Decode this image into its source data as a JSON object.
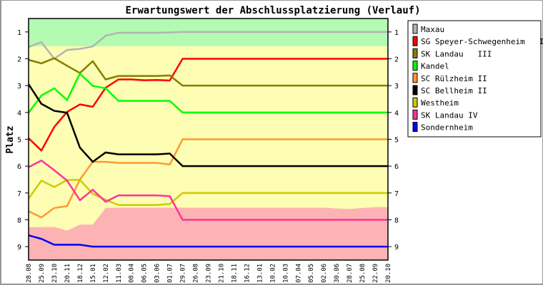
{
  "chart_data": {
    "type": "line",
    "title": "Erwartungswert der Abschlussplatzierung (Verlauf)",
    "ylabel": "Platz",
    "xlabel": "",
    "ylim": [
      0.5,
      9.5
    ],
    "y_inverted": true,
    "yticks": [
      "1",
      "2",
      "3",
      "4",
      "5",
      "6",
      "7",
      "8",
      "9"
    ],
    "legend_position": "right",
    "grid": false,
    "categories": [
      "28.08",
      "25.09",
      "23.10",
      "20.11",
      "18.12",
      "15.01",
      "12.02",
      "11.03",
      "08.04",
      "06.05",
      "03.06",
      "01.07",
      "29.07",
      "26.08",
      "23.09",
      "21.10",
      "18.11",
      "16.12",
      "13.01",
      "10.02",
      "10.03",
      "07.04",
      "05.05",
      "02.06",
      "30.06",
      "28.07",
      "25.08",
      "22.09",
      "20.10"
    ],
    "bands": {
      "promotion": {
        "color": "#b3fbb3",
        "upper_boundary": 1.53
      },
      "middle": {
        "color": "#fdfdb3"
      },
      "relegation": {
        "color": "#fdb3b3",
        "boundary": [
          8.28,
          8.27,
          8.27,
          8.4,
          8.18,
          8.18,
          7.56,
          7.55,
          7.55,
          7.55,
          7.55,
          7.55,
          7.55,
          7.55,
          7.55,
          7.55,
          7.55,
          7.55,
          7.55,
          7.55,
          7.55,
          7.55,
          7.55,
          7.55,
          7.58,
          7.6,
          7.56,
          7.53,
          7.53
        ]
      }
    },
    "series": [
      {
        "name": "Maxau",
        "color": "#b3b3b3",
        "values": [
          1.56,
          1.38,
          2.0,
          1.67,
          1.63,
          1.54,
          1.14,
          1.03,
          1.03,
          1.03,
          1.03,
          1.02,
          1.0,
          1,
          1,
          1,
          1,
          1,
          1,
          1,
          1,
          1,
          1,
          1,
          1,
          1,
          1,
          1,
          1
        ]
      },
      {
        "name": "SG Speyer-Schwegenheim   IV",
        "color": "#ff0000",
        "values": [
          4.96,
          5.42,
          4.54,
          3.98,
          3.7,
          3.79,
          3.08,
          2.77,
          2.77,
          2.8,
          2.79,
          2.81,
          2,
          2,
          2,
          2,
          2,
          2,
          2,
          2,
          2,
          2,
          2,
          2,
          2,
          2,
          2,
          2,
          2
        ]
      },
      {
        "name": "SK Landau   III",
        "color": "#808000",
        "values": [
          2.04,
          2.17,
          1.98,
          2.26,
          2.53,
          2.09,
          2.77,
          2.64,
          2.64,
          2.64,
          2.64,
          2.62,
          3,
          3,
          3,
          3,
          3,
          3,
          3,
          3,
          3,
          3,
          3,
          3,
          3,
          3,
          3,
          3,
          3
        ]
      },
      {
        "name": "Kandel",
        "color": "#00ff00",
        "values": [
          4.01,
          3.37,
          3.1,
          3.54,
          2.55,
          3.01,
          3.1,
          3.57,
          3.57,
          3.57,
          3.57,
          3.57,
          4,
          4,
          4,
          4,
          4,
          4,
          4,
          4,
          4,
          4,
          4,
          4,
          4,
          4,
          4,
          4,
          4
        ]
      },
      {
        "name": "SC Rülzheim II",
        "color": "#ff9933",
        "values": [
          7.68,
          7.91,
          7.56,
          7.49,
          6.5,
          5.84,
          5.84,
          5.88,
          5.88,
          5.88,
          5.88,
          5.94,
          5,
          5,
          5,
          5,
          5,
          5,
          5,
          5,
          5,
          5,
          5,
          5,
          5,
          5,
          5,
          5,
          5
        ]
      },
      {
        "name": "SC Bellheim II",
        "color": "#000000",
        "values": [
          2.95,
          3.68,
          3.94,
          4.01,
          5.31,
          5.84,
          5.49,
          5.56,
          5.56,
          5.56,
          5.56,
          5.53,
          6,
          6,
          6,
          6,
          6,
          6,
          6,
          6,
          6,
          6,
          6,
          6,
          6,
          6,
          6,
          6,
          6
        ]
      },
      {
        "name": "Westheim",
        "color": "#cccc00",
        "values": [
          7.21,
          6.54,
          6.78,
          6.52,
          6.51,
          7.03,
          7.25,
          7.45,
          7.45,
          7.45,
          7.45,
          7.41,
          7,
          7,
          7,
          7,
          7,
          7,
          7,
          7,
          7,
          7,
          7,
          7,
          7,
          7,
          7,
          7,
          7
        ]
      },
      {
        "name": "SK Landau IV",
        "color": "#ff3399",
        "values": [
          6.04,
          5.79,
          6.15,
          6.54,
          7.27,
          6.88,
          7.33,
          7.09,
          7.09,
          7.09,
          7.09,
          7.12,
          8,
          8,
          8,
          8,
          8,
          8,
          8,
          8,
          8,
          8,
          8,
          8,
          8,
          8,
          8,
          8,
          8
        ]
      },
      {
        "name": "Sondernheim",
        "color": "#0000ff",
        "values": [
          8.58,
          8.71,
          8.93,
          8.93,
          8.93,
          9.0,
          9,
          9,
          9,
          9,
          9,
          9,
          9,
          9,
          9,
          9,
          9,
          9,
          9,
          9,
          9,
          9,
          9,
          9,
          9,
          9,
          9,
          9,
          9
        ]
      }
    ]
  }
}
